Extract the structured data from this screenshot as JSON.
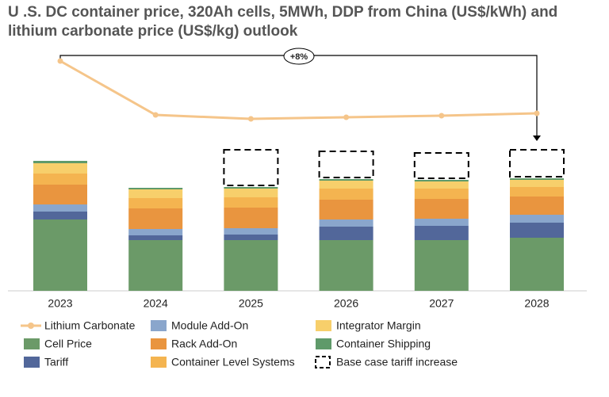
{
  "chart_data": {
    "type": "bar",
    "title": "U .S. DC container price, 320Ah cells, 5MWh, DDP from China (US$/kWh) and lithium carbonate price (US$/kg) outlook",
    "annotation": "+8%",
    "categories": [
      "2023",
      "2024",
      "2025",
      "2026",
      "2027",
      "2028"
    ],
    "ylim": [
      0,
      330
    ],
    "series": [
      {
        "name": "Lithium Carbonate",
        "type": "line",
        "color": "#f5c58a",
        "values": [
          290,
          222,
          217,
          219,
          221,
          224
        ]
      },
      {
        "name": "Cell Price",
        "type": "bar",
        "color": "#6b9a68",
        "values": [
          90,
          64,
          64,
          64,
          64,
          67
        ]
      },
      {
        "name": "Tariff",
        "type": "bar",
        "color": "#52679a",
        "values": [
          10,
          6,
          7,
          17,
          18,
          19
        ]
      },
      {
        "name": "Module Add-On",
        "type": "bar",
        "color": "#8aa6cc",
        "values": [
          9,
          8,
          8,
          9,
          9,
          10
        ]
      },
      {
        "name": "Rack Add-On",
        "type": "bar",
        "color": "#e9953f",
        "values": [
          25,
          26,
          26,
          25,
          25,
          23
        ]
      },
      {
        "name": "Container Level Systems",
        "type": "bar",
        "color": "#f4b450",
        "values": [
          14,
          13,
          13,
          14,
          13,
          12
        ]
      },
      {
        "name": "Integrator Margin",
        "type": "bar",
        "color": "#f7cf6b",
        "values": [
          13,
          11,
          11,
          10,
          9,
          9
        ]
      },
      {
        "name": "Container Shipping",
        "type": "bar",
        "color": "#5f9a6a",
        "values": [
          3,
          2,
          2,
          2,
          2,
          2
        ]
      },
      {
        "name": "Base case tariff increase",
        "type": "dashed",
        "color": "#000000",
        "values": [
          null,
          null,
          45,
          33,
          32,
          34
        ]
      }
    ]
  }
}
